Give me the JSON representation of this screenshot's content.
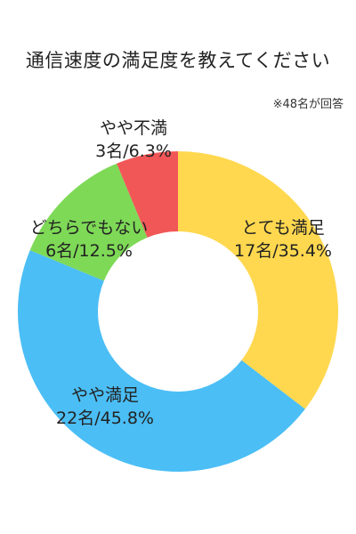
{
  "chart_data": {
    "type": "pie",
    "variant": "donut",
    "title": "通信速度の満足度を教えてください",
    "note": "※48名が回答",
    "categories": [
      "とても満足",
      "やや満足",
      "どちらでもない",
      "やや不満"
    ],
    "values": [
      17,
      22,
      6,
      3
    ],
    "percents": [
      "35.4%",
      "45.8%",
      "12.5%",
      "6.3%"
    ],
    "value_labels": [
      "17名/35.4%",
      "22名/45.8%",
      "6名/12.5%",
      "3名/6.3%"
    ],
    "colors": [
      "#FFD84F",
      "#4BBEF5",
      "#7ED957",
      "#F25757"
    ],
    "legend": "none",
    "start_angle": "top",
    "direction": "clockwise"
  }
}
